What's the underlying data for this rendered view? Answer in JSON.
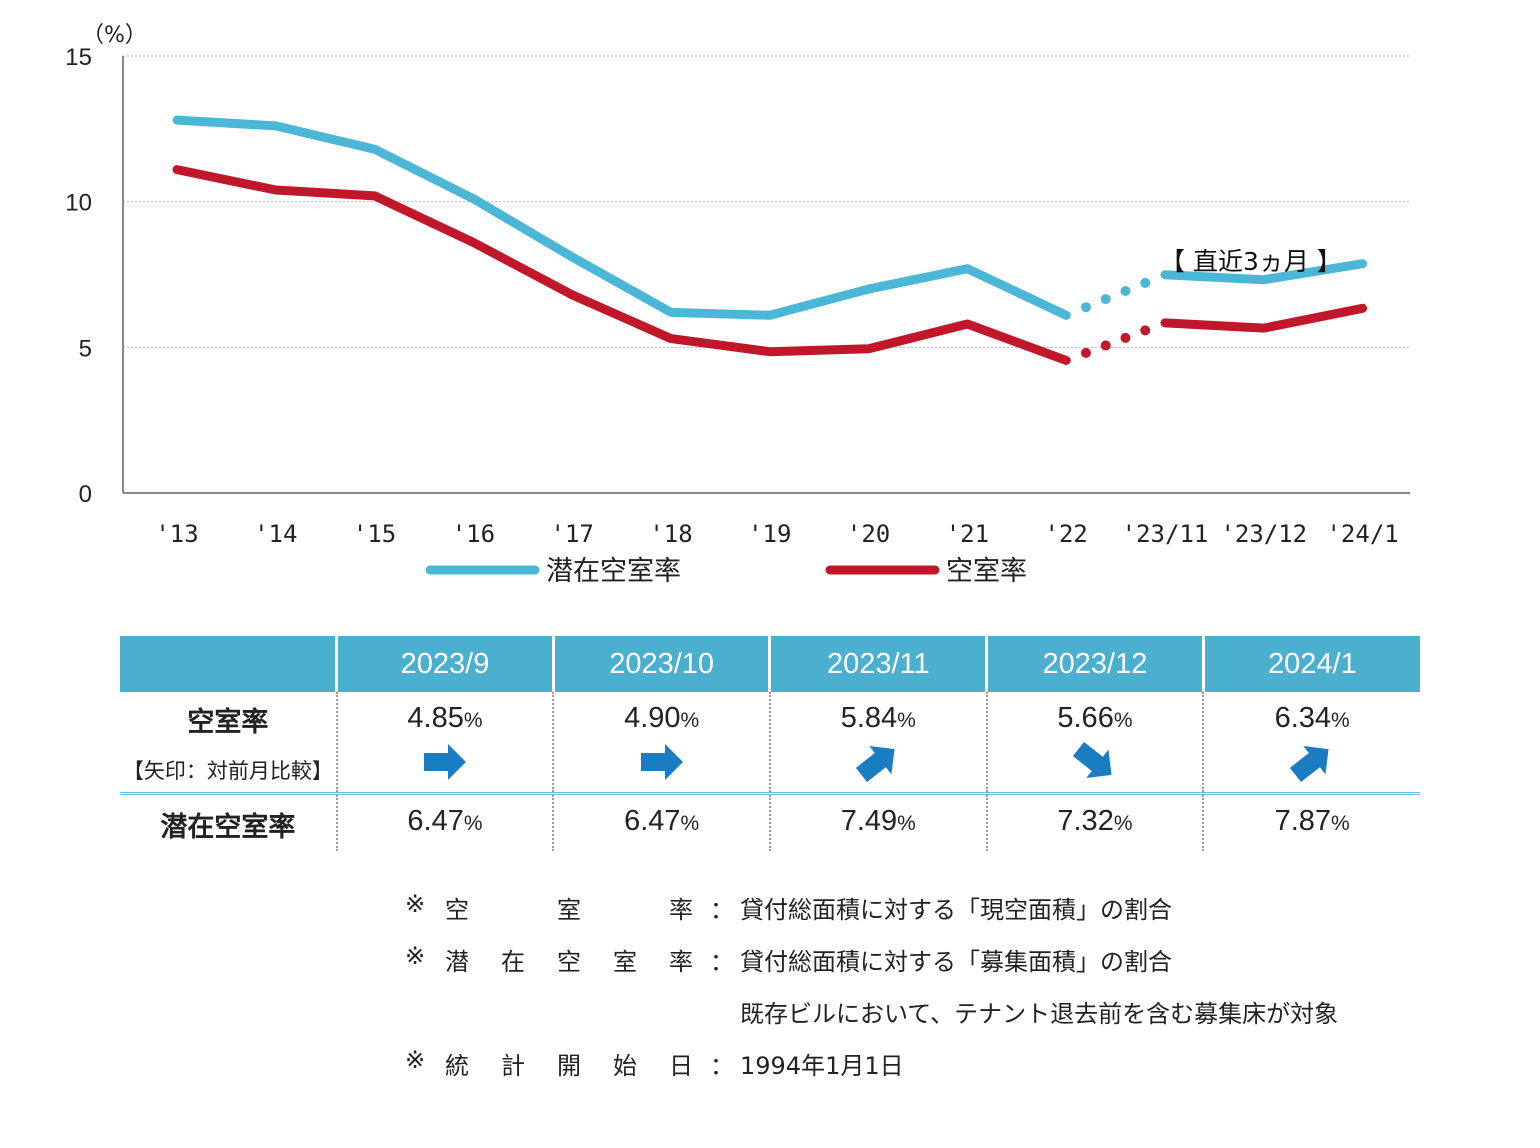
{
  "chart_data": {
    "type": "line",
    "unit_label": "（%）",
    "categories": [
      "'13",
      "'14",
      "'15",
      "'16",
      "'17",
      "'18",
      "'19",
      "'20",
      "'21",
      "'22",
      "'23/11",
      "'23/12",
      "'24/1"
    ],
    "yticks": [
      "0",
      "5",
      "10",
      "15"
    ],
    "ylim": [
      0,
      15
    ],
    "grid": true,
    "annotation": "【 直近3ヵ月 】",
    "series": [
      {
        "name": "潜在空室率",
        "color": "#4bb6d6",
        "values": [
          12.8,
          12.6,
          11.8,
          10.1,
          8.1,
          6.2,
          6.1,
          7.0,
          7.7,
          6.1,
          7.49,
          7.32,
          7.87
        ]
      },
      {
        "name": "空室率",
        "color": "#c0182a",
        "values": [
          11.1,
          10.4,
          10.2,
          8.6,
          6.8,
          5.3,
          4.85,
          4.95,
          5.8,
          4.55,
          5.84,
          5.66,
          6.34
        ]
      }
    ]
  },
  "table": {
    "months": [
      "2023/9",
      "2023/10",
      "2023/11",
      "2023/12",
      "2024/1"
    ],
    "vacancy_label": "空室率",
    "vacancy_sub": "【矢印：対前月比較】",
    "potential_label": "潜在空室率",
    "pct": "%",
    "vacancy_values": [
      "4.85",
      "4.90",
      "5.84",
      "5.66",
      "6.34"
    ],
    "arrows": [
      "arrow-right-icon",
      "arrow-right-icon",
      "arrow-up-right-icon",
      "arrow-down-right-icon",
      "arrow-up-right-icon"
    ],
    "arrow_color": "#1a7cc1",
    "potential_values": [
      "6.47",
      "6.47",
      "7.49",
      "7.32",
      "7.87"
    ]
  },
  "notes": [
    {
      "mark": "※",
      "label": [
        "空",
        "室",
        "率"
      ],
      "colon": "：",
      "text": "貸付総面積に対する「現空面積」の割合"
    },
    {
      "mark": "※",
      "label": [
        "潜",
        "在",
        "空",
        "室",
        "率"
      ],
      "colon": "：",
      "text": "貸付総面積に対する「募集面積」の割合"
    },
    {
      "mark": "",
      "label": [],
      "colon": "",
      "text": "既存ビルにおいて、テナント退去前を含む募集床が対象"
    },
    {
      "mark": "※",
      "label": [
        "統",
        "計",
        "開",
        "始",
        "日"
      ],
      "colon": "：",
      "text": "1994年1月1日"
    }
  ]
}
